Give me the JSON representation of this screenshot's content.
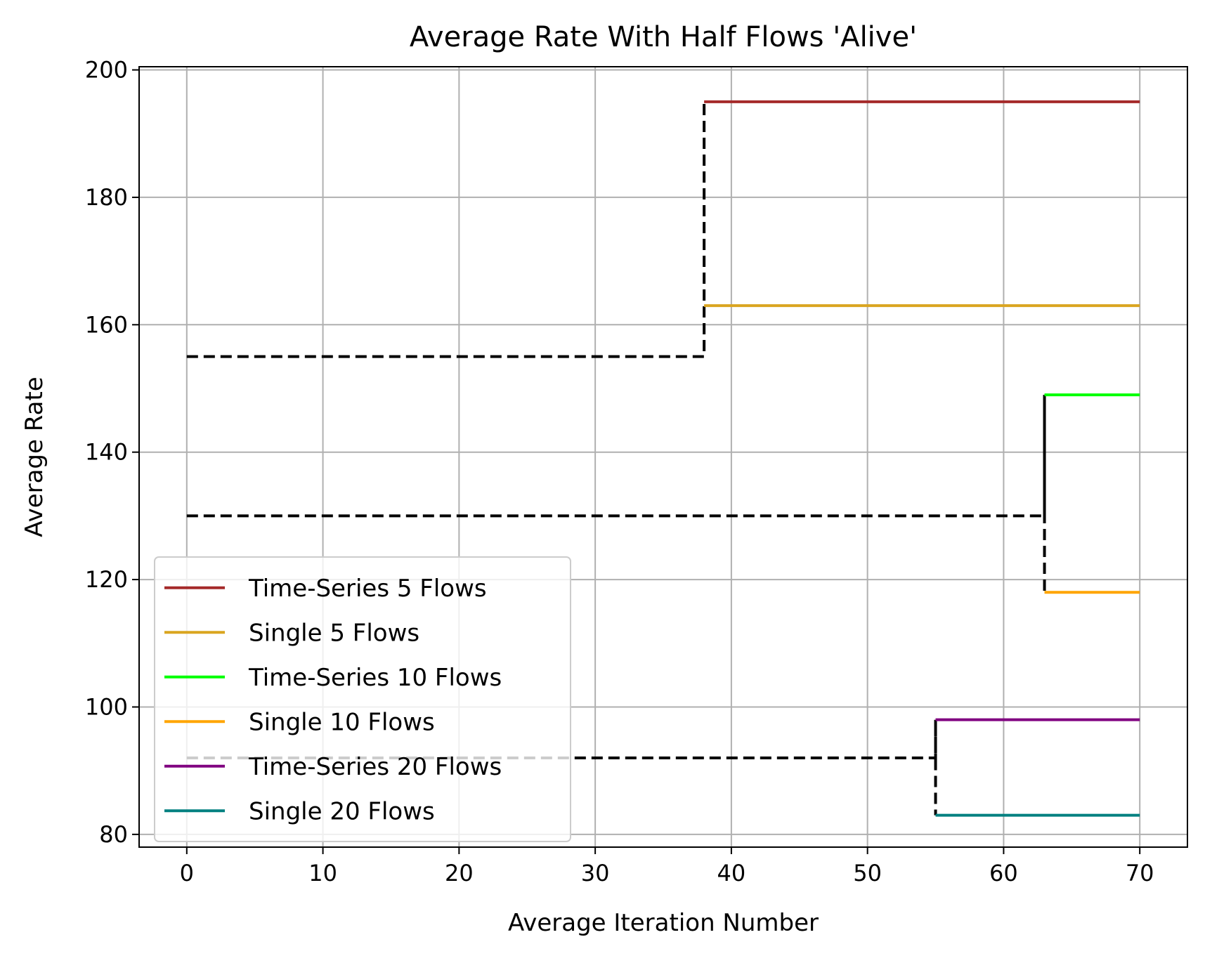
{
  "chart_data": {
    "type": "line",
    "title": "Average Rate With Half Flows 'Alive'",
    "xlabel": "Average Iteration Number",
    "ylabel": "Average Rate",
    "xlim": [
      -3.5,
      73.5
    ],
    "ylim": [
      78.0,
      200.5
    ],
    "xticks": [
      0,
      10,
      20,
      30,
      40,
      50,
      60,
      70
    ],
    "yticks": [
      80,
      100,
      120,
      140,
      160,
      180,
      200
    ],
    "grid": true,
    "legend_position": "lower-left",
    "series": [
      {
        "name": "Time-Series 5 Flows",
        "color": "#a52a2a",
        "x": [
          38,
          70
        ],
        "y": [
          195,
          195
        ]
      },
      {
        "name": "Single 5 Flows",
        "color": "#daa520",
        "x": [
          38,
          70
        ],
        "y": [
          163,
          163
        ]
      },
      {
        "name": "Time-Series 10 Flows",
        "color": "#00ff00",
        "x": [
          63,
          70
        ],
        "y": [
          149,
          149
        ]
      },
      {
        "name": "Single 10 Flows",
        "color": "#ffa500",
        "x": [
          63,
          70
        ],
        "y": [
          118,
          118
        ]
      },
      {
        "name": "Time-Series 20 Flows",
        "color": "#800080",
        "x": [
          55,
          70
        ],
        "y": [
          98,
          98
        ]
      },
      {
        "name": "Single 20 Flows",
        "color": "#008080",
        "x": [
          55,
          70
        ],
        "y": [
          83,
          83
        ]
      }
    ],
    "reference_lines": [
      {
        "color": "#000000",
        "style": "dashed",
        "x": [
          0,
          38,
          38
        ],
        "y": [
          155,
          155,
          195
        ]
      },
      {
        "color": "#000000",
        "style": "dashed",
        "x": [
          0,
          63,
          63,
          63
        ],
        "y": [
          130,
          130,
          149,
          118
        ]
      },
      {
        "color": "#000000",
        "style": "dashed",
        "x": [
          0,
          55,
          55,
          55
        ],
        "y": [
          92,
          92,
          98,
          83
        ]
      }
    ]
  }
}
